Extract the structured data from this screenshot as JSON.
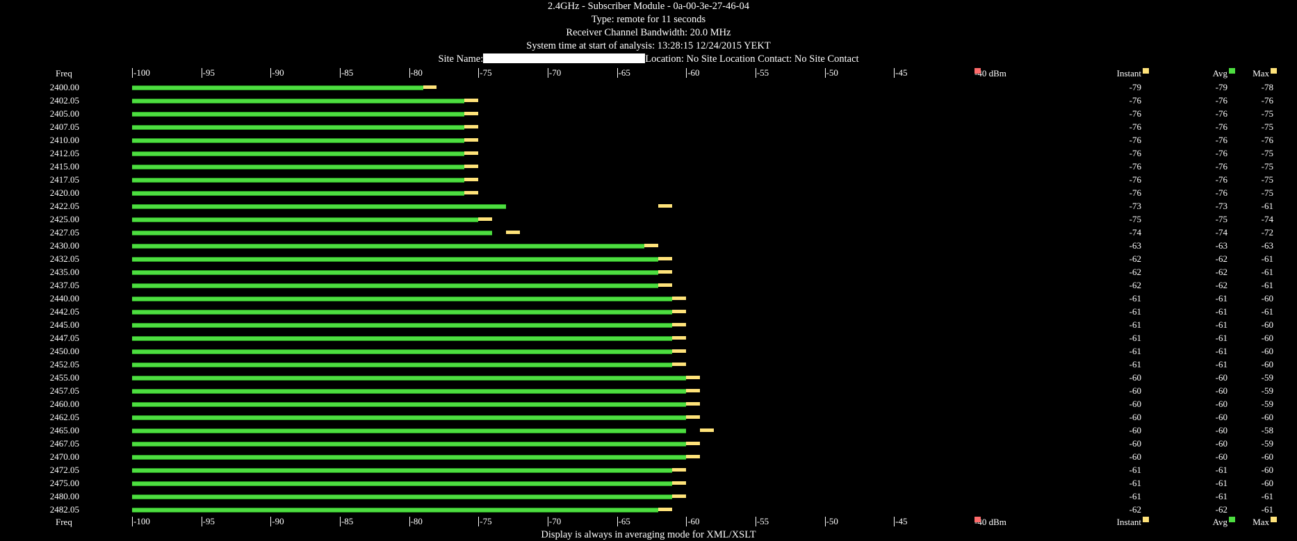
{
  "header": {
    "line1": "2.4GHz - Subscriber Module - 0a-00-3e-27-46-04",
    "line2": "Type: remote for 11 seconds",
    "line3": "Receiver Channel Bandwidth: 20.0 MHz",
    "line4": "System time at start of analysis: 13:28:15 12/24/2015 YEKT",
    "site_name_label": "Site Name:",
    "location_text": "Location: No Site Location Contact: No Site Contact"
  },
  "columns": {
    "freq": "Freq",
    "instant": "Instant",
    "avg": "Avg",
    "max": "Max",
    "threshold": "-40 dBm"
  },
  "colors": {
    "background": "#000000",
    "avg_bar": "#4dde40",
    "instant_bar": "#ffe37a",
    "threshold_marker": "#ff6b6b",
    "max_marker": "#ffe37a"
  },
  "footer": "Display is always in averaging mode for XML/XSLT",
  "chart_data": {
    "type": "bar",
    "orientation": "horizontal",
    "xlim": [
      -100,
      -40
    ],
    "xticks": [
      "-100",
      "-95",
      "-90",
      "-85",
      "-80",
      "-75",
      "-70",
      "-65",
      "-60",
      "-55",
      "-50",
      "-45"
    ],
    "xlabel": "",
    "ylabel": "Freq",
    "categories": [
      "2400.00",
      "2402.05",
      "2405.00",
      "2407.05",
      "2410.00",
      "2412.05",
      "2415.00",
      "2417.05",
      "2420.00",
      "2422.05",
      "2425.00",
      "2427.05",
      "2430.00",
      "2432.05",
      "2435.00",
      "2437.05",
      "2440.00",
      "2442.05",
      "2445.00",
      "2447.05",
      "2450.00",
      "2452.05",
      "2455.00",
      "2457.05",
      "2460.00",
      "2462.05",
      "2465.00",
      "2467.05",
      "2470.00",
      "2472.05",
      "2475.00",
      "2480.00",
      "2482.05"
    ],
    "series": [
      {
        "name": "Instant",
        "values": [
          -79,
          -76,
          -76,
          -76,
          -76,
          -76,
          -76,
          -76,
          -76,
          -73,
          -75,
          -74,
          -63,
          -62,
          -62,
          -62,
          -61,
          -61,
          -61,
          -61,
          -61,
          -61,
          -60,
          -60,
          -60,
          -60,
          -60,
          -60,
          -60,
          -61,
          -61,
          -61,
          -62
        ]
      },
      {
        "name": "Avg",
        "values": [
          -79,
          -76,
          -76,
          -76,
          -76,
          -76,
          -76,
          -76,
          -76,
          -73,
          -75,
          -74,
          -63,
          -62,
          -62,
          -62,
          -61,
          -61,
          -61,
          -61,
          -61,
          -61,
          -60,
          -60,
          -60,
          -60,
          -60,
          -60,
          -60,
          -61,
          -61,
          -61,
          -62
        ]
      },
      {
        "name": "Max",
        "values": [
          -78,
          -76,
          -75,
          -75,
          -76,
          -75,
          -75,
          -75,
          -75,
          -61,
          -74,
          -72,
          -63,
          -61,
          -61,
          -61,
          -60,
          -61,
          -60,
          -60,
          -60,
          -60,
          -59,
          -59,
          -59,
          -60,
          -58,
          -59,
          -60,
          -60,
          -60,
          -61,
          -61
        ]
      }
    ]
  }
}
